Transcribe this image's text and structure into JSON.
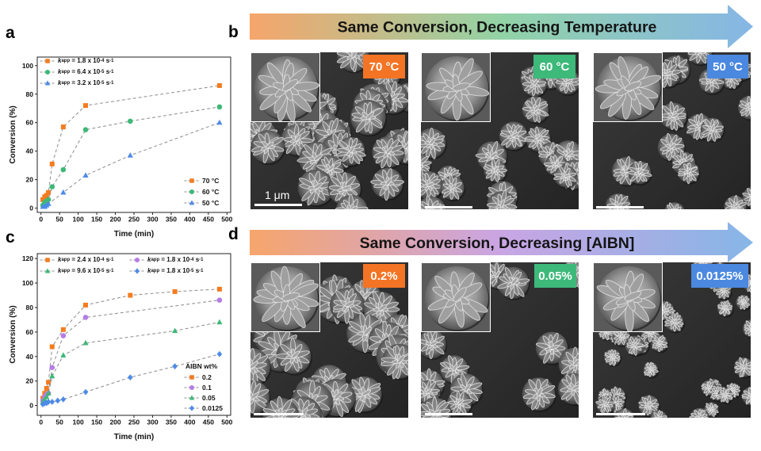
{
  "panels": {
    "a": "a",
    "b": "b",
    "c": "c",
    "d": "d"
  },
  "chart_data": [
    {
      "type": "line",
      "title": "",
      "xlabel": "Time (min)",
      "ylabel": "Conversion (%)",
      "xlim": [
        -10,
        510
      ],
      "ylim": [
        -3,
        106
      ],
      "xticks": [
        0,
        50,
        100,
        150,
        200,
        250,
        300,
        350,
        400,
        450,
        500
      ],
      "yticks": [
        0,
        20,
        40,
        60,
        80,
        100
      ],
      "grid": false,
      "legend_placement": "bottom-right",
      "rate_legend_placement": "top-left",
      "series": [
        {
          "name": "70 °C",
          "marker": "square",
          "color": "#f47c20",
          "rate": {
            "k": "k",
            "sub": "app",
            "text": " = 1.8 x 10",
            "exp": "-4",
            "unit": " s",
            "unit_exp": "-1"
          },
          "x": [
            5,
            10,
            15,
            20,
            30,
            60,
            120,
            480
          ],
          "y": [
            6,
            8,
            9,
            11,
            31,
            57,
            72,
            86
          ]
        },
        {
          "name": "60 °C",
          "marker": "circle",
          "color": "#3fb878",
          "rate": {
            "k": "k",
            "sub": "app",
            "text": " = 6.4 x 10",
            "exp": "-5",
            "unit": " s",
            "unit_exp": "-1"
          },
          "x": [
            5,
            10,
            15,
            20,
            30,
            60,
            120,
            240,
            480
          ],
          "y": [
            2,
            4,
            5,
            6,
            15,
            27,
            55,
            61,
            71
          ]
        },
        {
          "name": "50 °C",
          "marker": "triangle",
          "color": "#4d8be6",
          "rate": {
            "k": "k",
            "sub": "app",
            "text": " = 3.2 x 10",
            "exp": "-5",
            "unit": " s",
            "unit_exp": "-1"
          },
          "x": [
            5,
            10,
            15,
            20,
            60,
            120,
            240,
            480
          ],
          "y": [
            1,
            1,
            2,
            3,
            11,
            23,
            37,
            60
          ]
        }
      ]
    },
    {
      "type": "line",
      "title": "",
      "xlabel": "Time (min)",
      "ylabel": "Conversion (%)",
      "xlim": [
        -10,
        510
      ],
      "ylim": [
        -8,
        124
      ],
      "xticks": [
        0,
        50,
        100,
        150,
        200,
        250,
        300,
        350,
        400,
        450,
        500
      ],
      "yticks": [
        0,
        20,
        40,
        60,
        80,
        100,
        120
      ],
      "grid": false,
      "legend_title": "AIBN wt%",
      "legend_placement": "bottom-right",
      "rate_legend_placement": "top-left",
      "series": [
        {
          "name": "0.2",
          "marker": "square",
          "color": "#f47c20",
          "rate": {
            "k": "k",
            "sub": "app",
            "text": " = 2.4 x 10",
            "exp": "-4",
            "unit": " s",
            "unit_exp": "-1"
          },
          "x": [
            5,
            10,
            15,
            20,
            30,
            60,
            120,
            240,
            360,
            480
          ],
          "y": [
            6,
            10,
            14,
            19,
            48,
            62,
            82,
            90,
            93,
            95
          ]
        },
        {
          "name": "0.1",
          "marker": "circle",
          "color": "#b57de6",
          "rate": {
            "k": "k",
            "sub": "app",
            "text": " = 1.8 x 10",
            "exp": "-4",
            "unit": " s",
            "unit_exp": "-1"
          },
          "x": [
            5,
            10,
            15,
            20,
            30,
            60,
            120,
            480
          ],
          "y": [
            4,
            7,
            9,
            10,
            31,
            57,
            72,
            86
          ]
        },
        {
          "name": "0.05",
          "marker": "triangle",
          "color": "#3fb878",
          "rate": {
            "k": "k",
            "sub": "app",
            "text": " = 9.6 x 10",
            "exp": "-5",
            "unit": " s",
            "unit_exp": "-1"
          },
          "x": [
            5,
            10,
            15,
            20,
            30,
            60,
            120,
            360,
            480
          ],
          "y": [
            3,
            5,
            7,
            10,
            24,
            41,
            51,
            61,
            68
          ]
        },
        {
          "name": "0.0125",
          "marker": "diamond",
          "color": "#4d8be6",
          "rate": {
            "k": "k",
            "sub": "app",
            "text": " = 1.8 x 10",
            "exp": "-5",
            "unit": " s",
            "unit_exp": "-1"
          },
          "x": [
            5,
            10,
            15,
            20,
            30,
            45,
            60,
            120,
            240,
            360,
            480
          ],
          "y": [
            1,
            2,
            2,
            3,
            3,
            4,
            5,
            11,
            23,
            32,
            42
          ]
        }
      ]
    }
  ],
  "panel_b": {
    "arrow_text": "Same Conversion, Decreasing Temperature",
    "arrow_colors": [
      "#f6a56b",
      "#92d3a6",
      "#86b6e6"
    ],
    "images": [
      {
        "tag": "70 °C",
        "tag_color": "#f37424",
        "scale_label": "1 μm"
      },
      {
        "tag": "60 °C",
        "tag_color": "#3db97a"
      },
      {
        "tag": "50 °C",
        "tag_color": "#4b88e0"
      }
    ]
  },
  "panel_d": {
    "arrow_text": "Same Conversion, Decreasing [AIBN]",
    "arrow_colors": [
      "#f6a56b",
      "#c9a5e4",
      "#86b6e6"
    ],
    "images": [
      {
        "tag": "0.2%",
        "tag_color": "#f37424"
      },
      {
        "tag": "0.05%",
        "tag_color": "#3db97a"
      },
      {
        "tag": "0.0125%",
        "tag_color": "#4b88e0"
      }
    ]
  }
}
